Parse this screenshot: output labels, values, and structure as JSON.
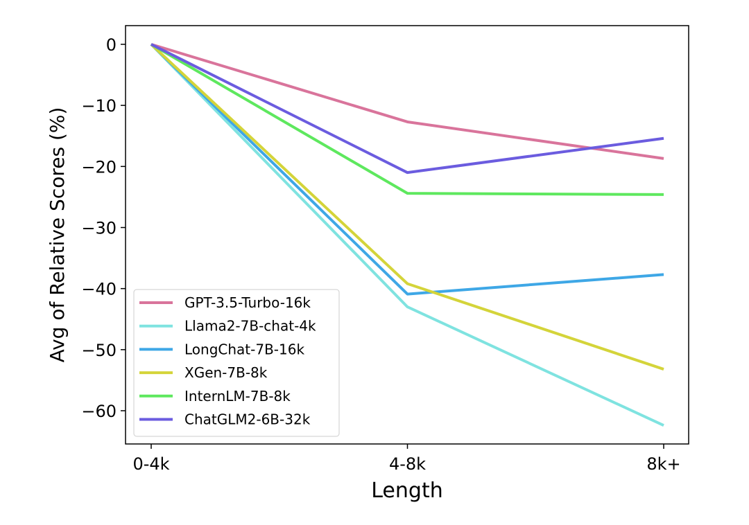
{
  "chart_data": {
    "type": "line",
    "title": "",
    "xlabel": "Length",
    "ylabel": "Avg of Relative Scores (%)",
    "categories": [
      "0-4k",
      "4-8k",
      "8k+"
    ],
    "ylim": [
      -65.4,
      2.9
    ],
    "yticks": [
      0,
      -10,
      -20,
      -30,
      -40,
      -50,
      -60
    ],
    "ytick_labels": [
      "0",
      "−10",
      "−20",
      "−30",
      "−40",
      "−50",
      "−60"
    ],
    "grid": false,
    "legend_position": "lower-left",
    "series": [
      {
        "name": "GPT-3.5-Turbo-16k",
        "color": "#d9749b",
        "values": [
          0,
          -12.7,
          -18.7
        ]
      },
      {
        "name": "Llama2-7B-chat-4k",
        "color": "#7fe3e0",
        "values": [
          0,
          -43.0,
          -62.4
        ]
      },
      {
        "name": "LongChat-7B-16k",
        "color": "#3ea7e6",
        "values": [
          0,
          -40.9,
          -37.7
        ]
      },
      {
        "name": "XGen-7B-8k",
        "color": "#d4d43a",
        "values": [
          0,
          -39.2,
          -53.2
        ]
      },
      {
        "name": "InternLM-7B-8k",
        "color": "#5ee85e",
        "values": [
          0,
          -24.4,
          -24.6
        ]
      },
      {
        "name": "ChatGLM2-6B-32k",
        "color": "#6b5cdf",
        "values": [
          0,
          -21.0,
          -15.4
        ]
      }
    ]
  }
}
